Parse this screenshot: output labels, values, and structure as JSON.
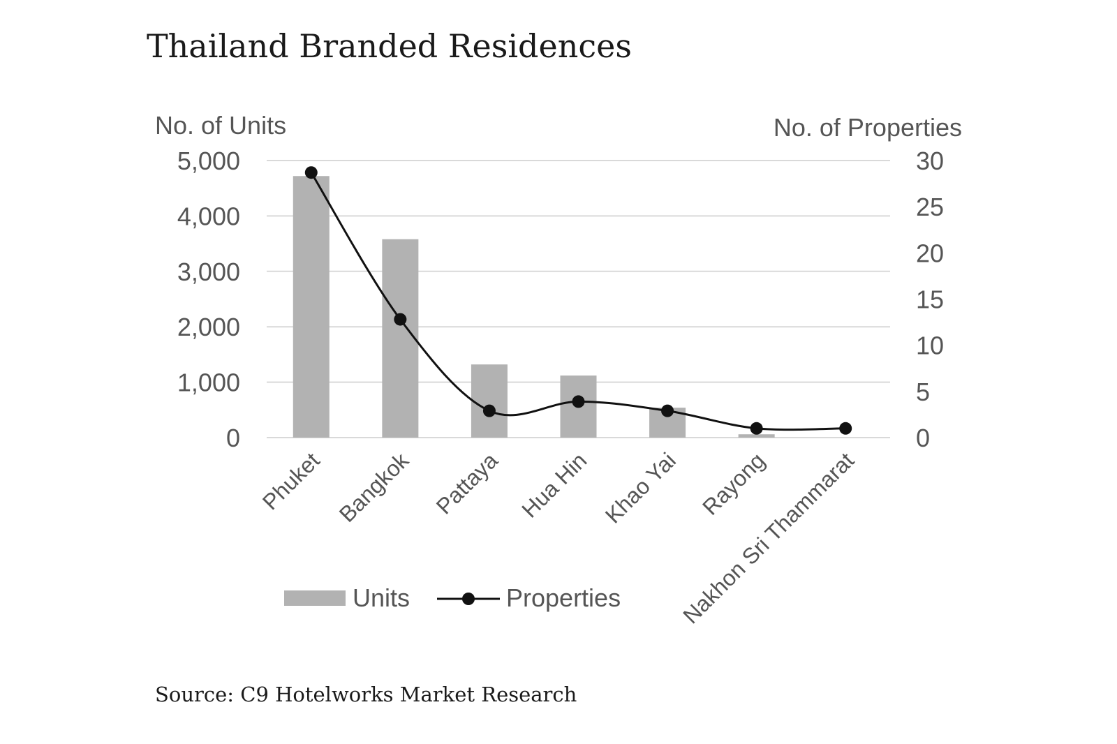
{
  "chart_data": {
    "type": "bar",
    "title": "Thailand Branded Residences",
    "source": "Source: C9 Hotelworks Market Research",
    "categories": [
      "Phuket",
      "Bangkok",
      "Pattaya",
      "Hua Hin",
      "Khao Yai",
      "Rayong",
      "Nakhon Sri Thammarat"
    ],
    "y_axis": {
      "label": "No. of Units",
      "range": [
        0,
        5000
      ],
      "ticks": [
        "0",
        "1,000",
        "2,000",
        "3,000",
        "4,000",
        "5,000"
      ]
    },
    "y2_axis": {
      "label": "No. of Properties",
      "range": [
        0,
        30
      ],
      "ticks": [
        "0",
        "5",
        "10",
        "15",
        "20",
        "25",
        "30"
      ]
    },
    "series": [
      {
        "name": "Units",
        "type": "bar",
        "axis": "left",
        "color": "#b2b2b2",
        "values": [
          4720,
          3580,
          1320,
          1120,
          540,
          60,
          0
        ]
      },
      {
        "name": "Properties",
        "type": "line",
        "axis": "right",
        "color": "#111111",
        "smooth": true,
        "values": [
          28.7,
          12.8,
          2.9,
          3.9,
          2.9,
          1.0,
          1.0
        ]
      }
    ],
    "grid": true,
    "legend": "bottom-left"
  }
}
